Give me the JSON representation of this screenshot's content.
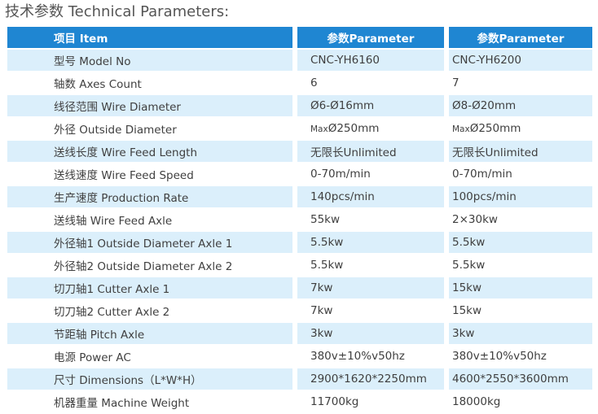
{
  "title": "技术参数 Technical Parameters:",
  "colors": {
    "header_bg": "#1f86d2",
    "row_shade": "#dbeffb",
    "row_plain": "#ffffff"
  },
  "header": {
    "item": "项目 Item",
    "param1": "参数Parameter",
    "param2": "参数Parameter"
  },
  "rows": [
    {
      "label": "型号 Model No",
      "v1": "CNC-YH6160",
      "v2": "CNC-YH6200"
    },
    {
      "label": "轴数 Axes Count",
      "v1": "6",
      "v2": "7"
    },
    {
      "label": "线径范围 Wire Diameter",
      "v1": "Ø6-Ø16mm",
      "v2": "Ø8-Ø20mm"
    },
    {
      "label": "外径 Outside Diameter",
      "v1_prefix": "Max",
      "v1": "Ø250mm",
      "v2_prefix": "Max",
      "v2": "Ø250mm"
    },
    {
      "label": "送线长度 Wire Feed Length",
      "v1": "无限长Unlimited",
      "v2": "无限长Unlimited"
    },
    {
      "label": "送线速度 Wire Feed Speed",
      "v1": "0-70m/min",
      "v2": "0-70m/min"
    },
    {
      "label": "生产速度 Production Rate",
      "v1": "140pcs/min",
      "v2": "100pcs/min"
    },
    {
      "label": "送线轴 Wire Feed Axle",
      "v1": "55kw",
      "v2": "2×30kw"
    },
    {
      "label": "外径轴1 Outside Diameter Axle 1",
      "v1": "5.5kw",
      "v2": "5.5kw"
    },
    {
      "label": "外径轴2 Outside Diameter Axle 2",
      "v1": "5.5kw",
      "v2": "5.5kw"
    },
    {
      "label": "切刀轴1 Cutter Axle 1",
      "v1": "7kw",
      "v2": "15kw"
    },
    {
      "label": "切刀轴2 Cutter Axle 2",
      "v1": "7kw",
      "v2": "15kw"
    },
    {
      "label": "节距轴 Pitch Axle",
      "v1": "3kw",
      "v2": "3kw"
    },
    {
      "label": "电源 Power AC",
      "v1": "380v±10%v50hz",
      "v2": "380v±10%v50hz"
    },
    {
      "label": "尺寸 Dimensions（L*W*H）",
      "v1": "2900*1620*2250mm",
      "v2": "4600*2550*3600mm"
    },
    {
      "label": "机器重量 Machine Weight",
      "v1": "11700kg",
      "v2": "18000kg"
    }
  ]
}
